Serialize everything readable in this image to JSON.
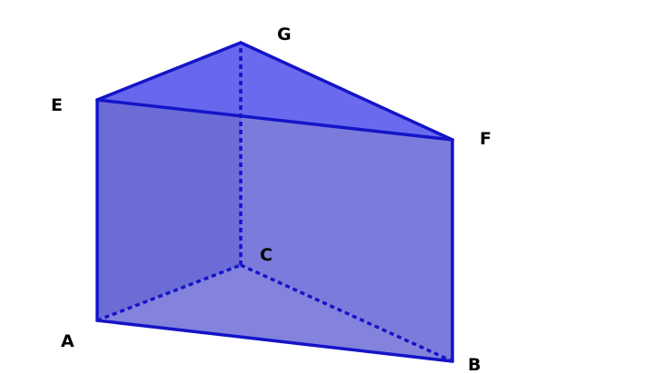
{
  "figure": {
    "vertices": [
      {
        "id": "A",
        "label": "A"
      },
      {
        "id": "B",
        "label": "B"
      },
      {
        "id": "C",
        "label": "C"
      },
      {
        "id": "E",
        "label": "E"
      },
      {
        "id": "F",
        "label": "F"
      },
      {
        "id": "G",
        "label": "G"
      }
    ],
    "visible_edges": [
      [
        "A",
        "B"
      ],
      [
        "A",
        "E"
      ],
      [
        "B",
        "F"
      ],
      [
        "E",
        "F"
      ],
      [
        "E",
        "G"
      ],
      [
        "G",
        "F"
      ]
    ],
    "hidden_edges": [
      [
        "A",
        "C"
      ],
      [
        "C",
        "B"
      ],
      [
        "C",
        "G"
      ]
    ],
    "colors": {
      "edge": "#1414c8",
      "face_fill": "#5a5ad2",
      "top_face_fill": "#6464ee"
    }
  }
}
